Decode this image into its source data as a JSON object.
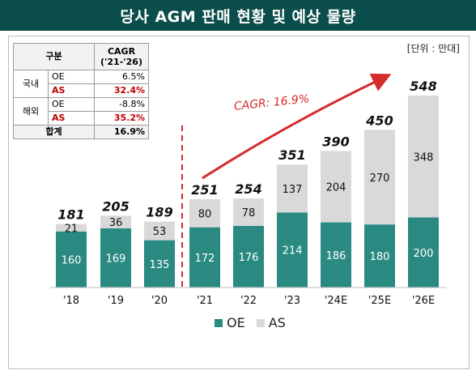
{
  "header": {
    "title": "당사 AGM 판매 현황 및 예상 물량"
  },
  "unit_label": "[단위 : 만대]",
  "cagr_table": {
    "col_segment": "구분",
    "col_cagr": "CAGR",
    "col_period": "('21-'26)",
    "rows": [
      {
        "region": "국내",
        "segment": "OE",
        "value": "6.5%"
      },
      {
        "region": "",
        "segment": "AS",
        "value": "32.4%"
      },
      {
        "region": "해외",
        "segment": "OE",
        "value": "-8.8%"
      },
      {
        "region": "",
        "segment": "AS",
        "value": "35.2%"
      }
    ],
    "total_label": "합계",
    "total_value": "16.9%"
  },
  "chart_data": {
    "type": "bar",
    "stacked": true,
    "categories": [
      "'18",
      "'19",
      "'20",
      "'21",
      "'22",
      "'23",
      "'24E",
      "'25E",
      "'26E"
    ],
    "series": [
      {
        "name": "OE",
        "values": [
          160,
          169,
          135,
          172,
          176,
          214,
          186,
          180,
          200
        ],
        "color": "#2a8a82"
      },
      {
        "name": "AS",
        "values": [
          21,
          36,
          53,
          80,
          78,
          137,
          204,
          270,
          348
        ],
        "color": "#d9d9d9"
      }
    ],
    "totals": [
      181,
      205,
      189,
      251,
      254,
      351,
      390,
      450,
      548
    ],
    "annotation": "CAGR: 16.9%",
    "ylim": [
      0,
      580
    ],
    "legend": "bottom",
    "divider_after_category": "'20",
    "colors": {
      "annotation": "#d62b2b",
      "divider": "#d62b2b"
    }
  },
  "legend": {
    "oe": "OE",
    "as": "AS"
  }
}
